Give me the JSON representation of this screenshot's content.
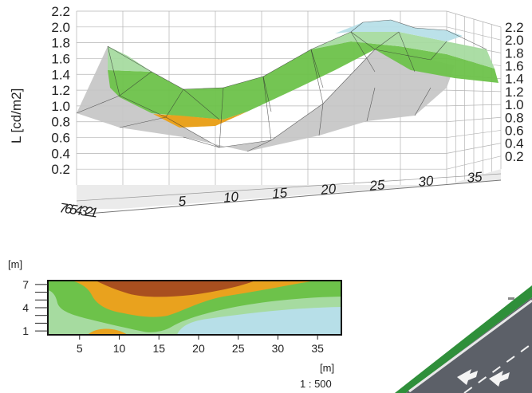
{
  "chart_data": [
    {
      "type": "surface3d",
      "ylabel": "L [cd/m2]",
      "z_ticks_left": [
        "2.2",
        "2.0",
        "1.8",
        "1.6",
        "1.4",
        "1.2",
        "1.0",
        "0.8",
        "0.6",
        "0.4",
        "0.2"
      ],
      "z_ticks_right": [
        "2.2",
        "2.0",
        "1.8",
        "1.6",
        "1.4",
        "1.2",
        "1.0",
        "0.8",
        "0.6",
        "0.4",
        "0.2"
      ],
      "x_ticks": [
        "5",
        "10",
        "15",
        "20",
        "25",
        "30",
        "35"
      ],
      "y_ticks_label": "7654321",
      "zlim": [
        0,
        2.2
      ],
      "xlim": [
        1,
        37
      ],
      "grid": true,
      "colors": {
        "grey": "#c6c6c6",
        "green": "#6dc24a",
        "light_green": "#a6dba0",
        "light_blue": "#b7dfe8",
        "orange": "#e9a21e"
      }
    },
    {
      "type": "heatmap",
      "ylabel": "[m]",
      "xlabel": "[m]",
      "scale": "1 : 500",
      "x_ticks": [
        "5",
        "10",
        "15",
        "20",
        "25",
        "30",
        "35"
      ],
      "y_ticks": [
        "7",
        "4",
        "1"
      ],
      "xlim": [
        1,
        38
      ],
      "ylim": [
        0.5,
        7.5
      ],
      "colors": {
        "dark_brown": "#a84f1f",
        "orange": "#e9a21e",
        "green": "#6dc24a",
        "light_green": "#a6dba0",
        "light_blue": "#b7dfe8"
      }
    }
  ]
}
